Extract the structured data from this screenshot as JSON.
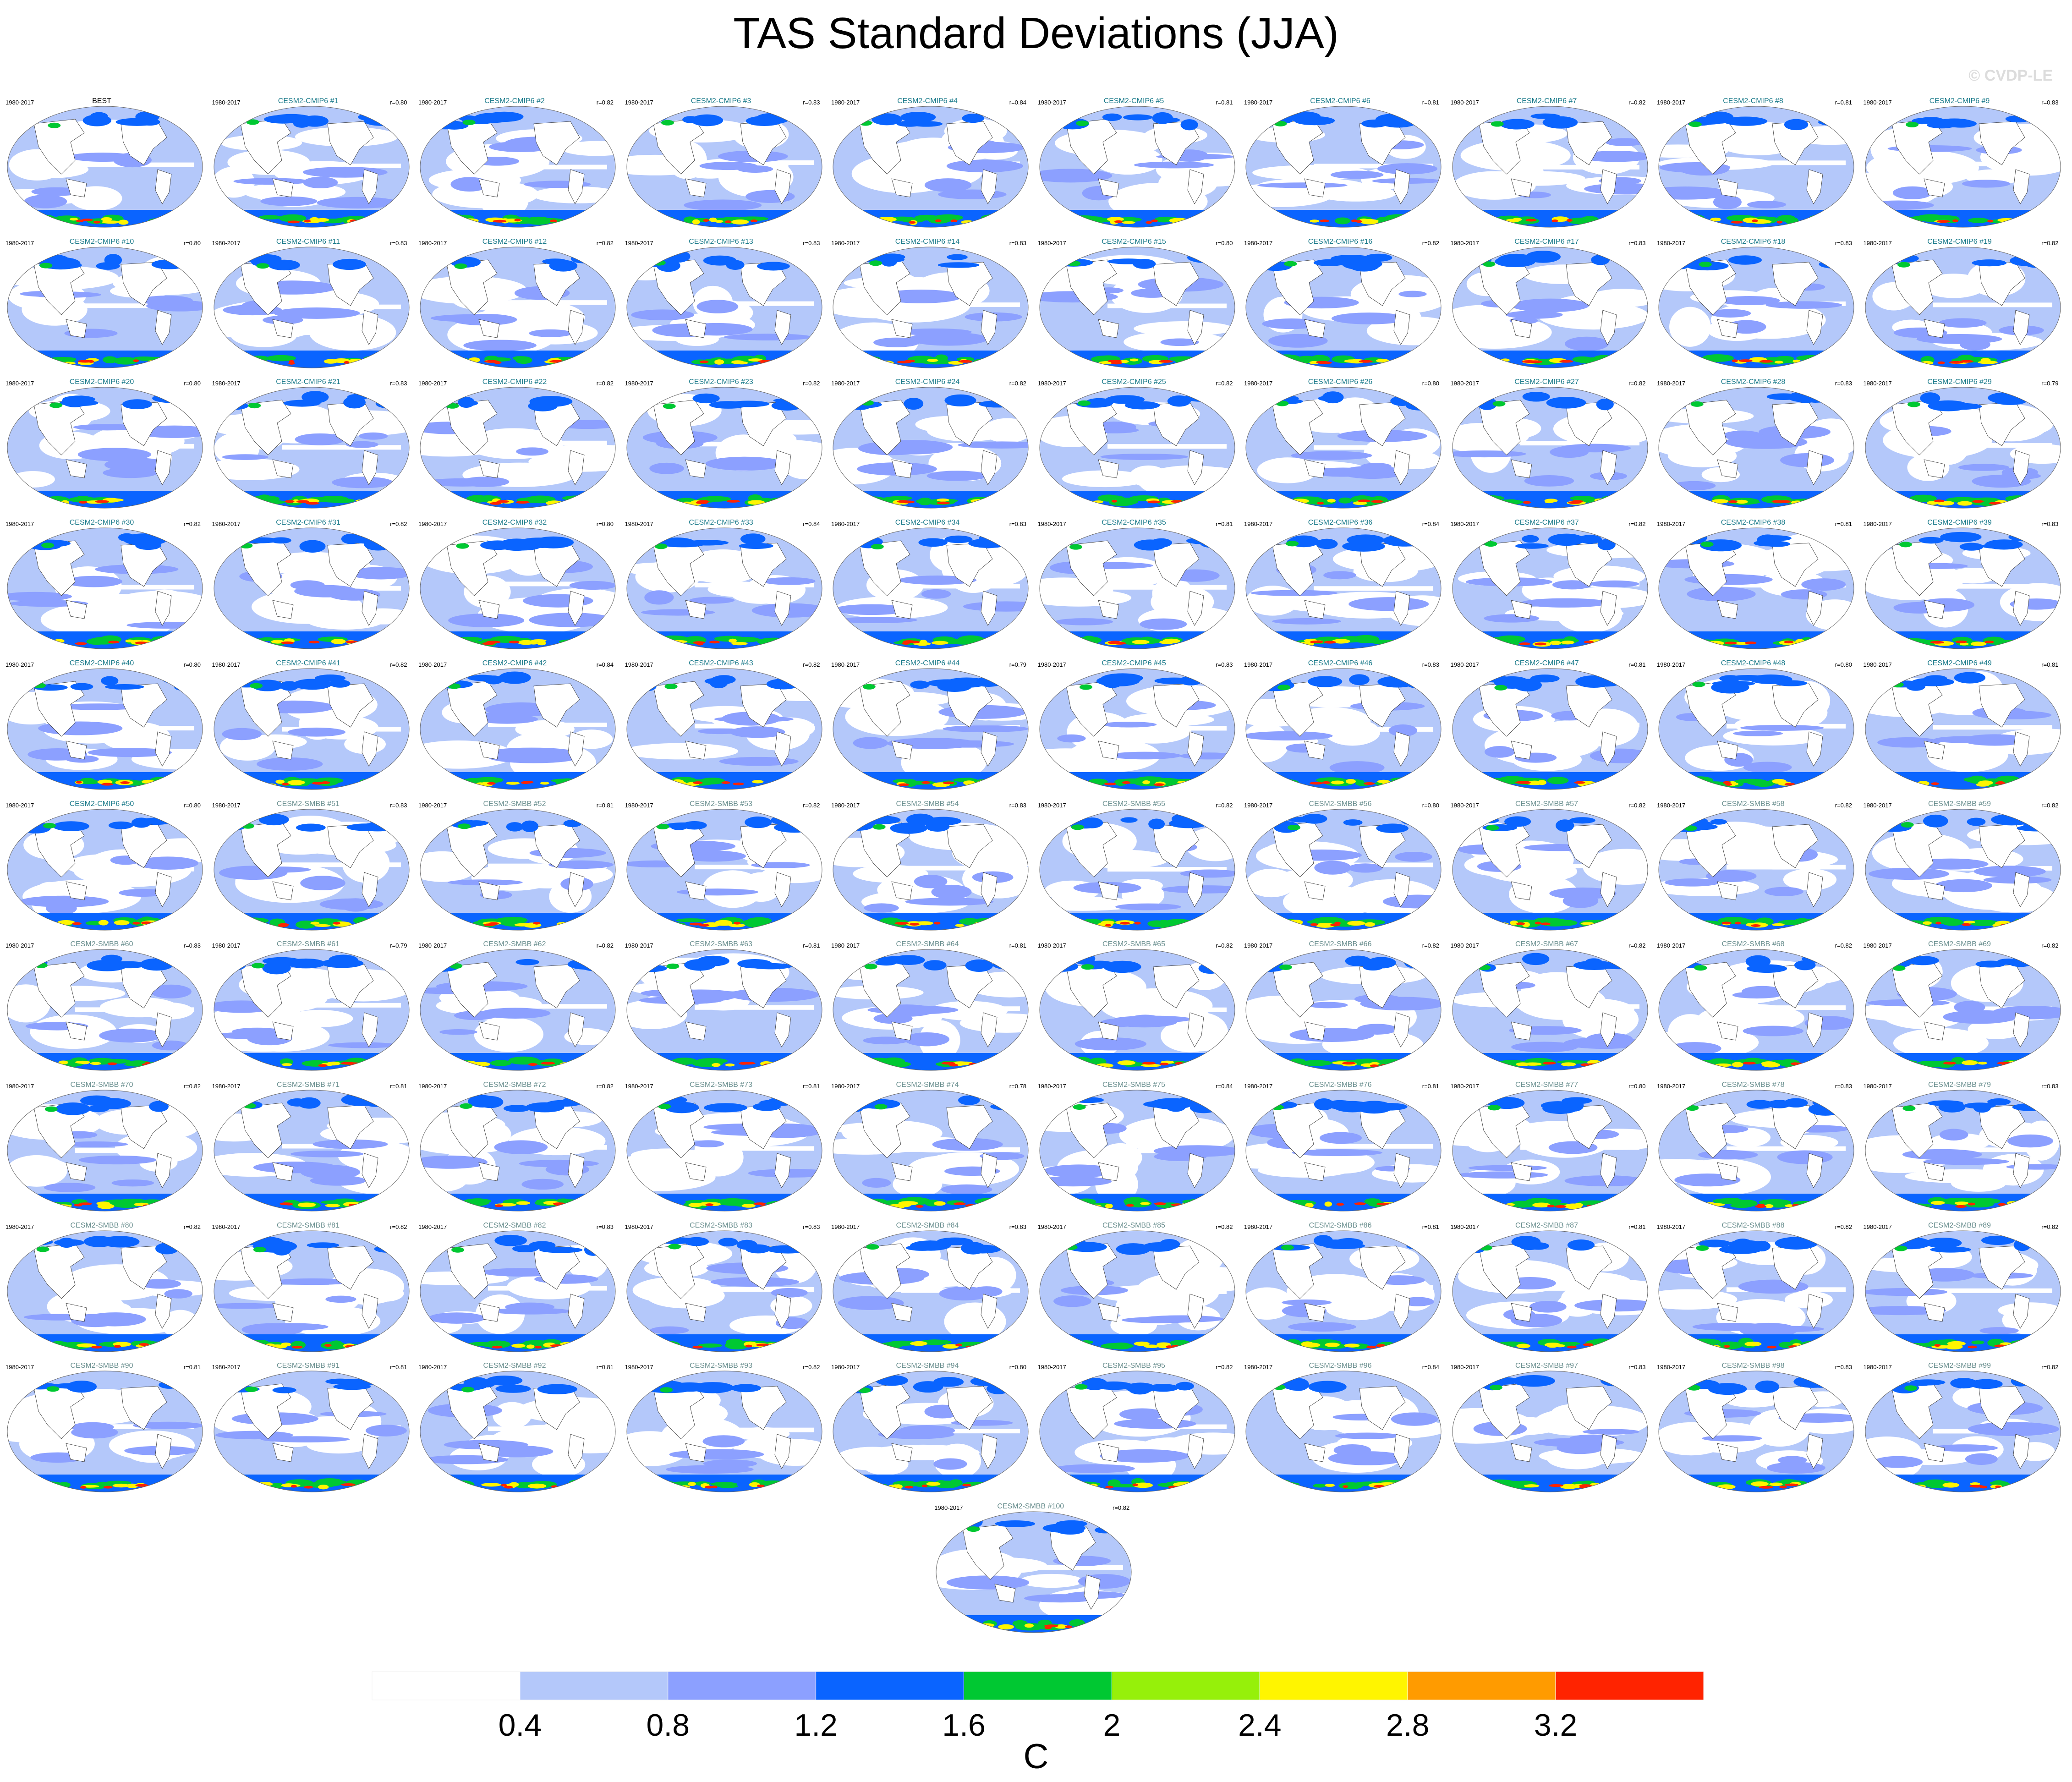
{
  "title": "TAS Standard Deviations (JJA)",
  "watermark": "© CVDP-LE",
  "period": "1980-2017",
  "name_colors": {
    "BEST": "#000000",
    "CESM2-CMIP6": "#1a7a8a",
    "CESM2-SMBB": "#6a8f8f"
  },
  "panels": [
    {
      "name": "BEST",
      "corr": ""
    },
    {
      "name": "CESM2-CMIP6 #1",
      "corr": "r=0.80"
    },
    {
      "name": "CESM2-CMIP6 #2",
      "corr": "r=0.82"
    },
    {
      "name": "CESM2-CMIP6 #3",
      "corr": "r=0.83"
    },
    {
      "name": "CESM2-CMIP6 #4",
      "corr": "r=0.84"
    },
    {
      "name": "CESM2-CMIP6 #5",
      "corr": "r=0.81"
    },
    {
      "name": "CESM2-CMIP6 #6",
      "corr": "r=0.81"
    },
    {
      "name": "CESM2-CMIP6 #7",
      "corr": "r=0.82"
    },
    {
      "name": "CESM2-CMIP6 #8",
      "corr": "r=0.81"
    },
    {
      "name": "CESM2-CMIP6 #9",
      "corr": "r=0.83"
    },
    {
      "name": "CESM2-CMIP6 #10",
      "corr": "r=0.80"
    },
    {
      "name": "CESM2-CMIP6 #11",
      "corr": "r=0.83"
    },
    {
      "name": "CESM2-CMIP6 #12",
      "corr": "r=0.82"
    },
    {
      "name": "CESM2-CMIP6 #13",
      "corr": "r=0.83"
    },
    {
      "name": "CESM2-CMIP6 #14",
      "corr": "r=0.83"
    },
    {
      "name": "CESM2-CMIP6 #15",
      "corr": "r=0.80"
    },
    {
      "name": "CESM2-CMIP6 #16",
      "corr": "r=0.82"
    },
    {
      "name": "CESM2-CMIP6 #17",
      "corr": "r=0.83"
    },
    {
      "name": "CESM2-CMIP6 #18",
      "corr": "r=0.83"
    },
    {
      "name": "CESM2-CMIP6 #19",
      "corr": "r=0.82"
    },
    {
      "name": "CESM2-CMIP6 #20",
      "corr": "r=0.80"
    },
    {
      "name": "CESM2-CMIP6 #21",
      "corr": "r=0.83"
    },
    {
      "name": "CESM2-CMIP6 #22",
      "corr": "r=0.82"
    },
    {
      "name": "CESM2-CMIP6 #23",
      "corr": "r=0.82"
    },
    {
      "name": "CESM2-CMIP6 #24",
      "corr": "r=0.82"
    },
    {
      "name": "CESM2-CMIP6 #25",
      "corr": "r=0.82"
    },
    {
      "name": "CESM2-CMIP6 #26",
      "corr": "r=0.80"
    },
    {
      "name": "CESM2-CMIP6 #27",
      "corr": "r=0.82"
    },
    {
      "name": "CESM2-CMIP6 #28",
      "corr": "r=0.83"
    },
    {
      "name": "CESM2-CMIP6 #29",
      "corr": "r=0.79"
    },
    {
      "name": "CESM2-CMIP6 #30",
      "corr": "r=0.82"
    },
    {
      "name": "CESM2-CMIP6 #31",
      "corr": "r=0.82"
    },
    {
      "name": "CESM2-CMIP6 #32",
      "corr": "r=0.80"
    },
    {
      "name": "CESM2-CMIP6 #33",
      "corr": "r=0.84"
    },
    {
      "name": "CESM2-CMIP6 #34",
      "corr": "r=0.83"
    },
    {
      "name": "CESM2-CMIP6 #35",
      "corr": "r=0.81"
    },
    {
      "name": "CESM2-CMIP6 #36",
      "corr": "r=0.84"
    },
    {
      "name": "CESM2-CMIP6 #37",
      "corr": "r=0.82"
    },
    {
      "name": "CESM2-CMIP6 #38",
      "corr": "r=0.81"
    },
    {
      "name": "CESM2-CMIP6 #39",
      "corr": "r=0.83"
    },
    {
      "name": "CESM2-CMIP6 #40",
      "corr": "r=0.80"
    },
    {
      "name": "CESM2-CMIP6 #41",
      "corr": "r=0.82"
    },
    {
      "name": "CESM2-CMIP6 #42",
      "corr": "r=0.84"
    },
    {
      "name": "CESM2-CMIP6 #43",
      "corr": "r=0.82"
    },
    {
      "name": "CESM2-CMIP6 #44",
      "corr": "r=0.79"
    },
    {
      "name": "CESM2-CMIP6 #45",
      "corr": "r=0.83"
    },
    {
      "name": "CESM2-CMIP6 #46",
      "corr": "r=0.83"
    },
    {
      "name": "CESM2-CMIP6 #47",
      "corr": "r=0.81"
    },
    {
      "name": "CESM2-CMIP6 #48",
      "corr": "r=0.80"
    },
    {
      "name": "CESM2-CMIP6 #49",
      "corr": "r=0.81"
    },
    {
      "name": "CESM2-CMIP6 #50",
      "corr": "r=0.80"
    },
    {
      "name": "CESM2-SMBB #51",
      "corr": "r=0.83"
    },
    {
      "name": "CESM2-SMBB #52",
      "corr": "r=0.81"
    },
    {
      "name": "CESM2-SMBB #53",
      "corr": "r=0.82"
    },
    {
      "name": "CESM2-SMBB #54",
      "corr": "r=0.83"
    },
    {
      "name": "CESM2-SMBB #55",
      "corr": "r=0.82"
    },
    {
      "name": "CESM2-SMBB #56",
      "corr": "r=0.80"
    },
    {
      "name": "CESM2-SMBB #57",
      "corr": "r=0.82"
    },
    {
      "name": "CESM2-SMBB #58",
      "corr": "r=0.82"
    },
    {
      "name": "CESM2-SMBB #59",
      "corr": "r=0.82"
    },
    {
      "name": "CESM2-SMBB #60",
      "corr": "r=0.83"
    },
    {
      "name": "CESM2-SMBB #61",
      "corr": "r=0.79"
    },
    {
      "name": "CESM2-SMBB #62",
      "corr": "r=0.82"
    },
    {
      "name": "CESM2-SMBB #63",
      "corr": "r=0.81"
    },
    {
      "name": "CESM2-SMBB #64",
      "corr": "r=0.81"
    },
    {
      "name": "CESM2-SMBB #65",
      "corr": "r=0.82"
    },
    {
      "name": "CESM2-SMBB #66",
      "corr": "r=0.82"
    },
    {
      "name": "CESM2-SMBB #67",
      "corr": "r=0.82"
    },
    {
      "name": "CESM2-SMBB #68",
      "corr": "r=0.82"
    },
    {
      "name": "CESM2-SMBB #69",
      "corr": "r=0.82"
    },
    {
      "name": "CESM2-SMBB #70",
      "corr": "r=0.82"
    },
    {
      "name": "CESM2-SMBB #71",
      "corr": "r=0.81"
    },
    {
      "name": "CESM2-SMBB #72",
      "corr": "r=0.82"
    },
    {
      "name": "CESM2-SMBB #73",
      "corr": "r=0.81"
    },
    {
      "name": "CESM2-SMBB #74",
      "corr": "r=0.78"
    },
    {
      "name": "CESM2-SMBB #75",
      "corr": "r=0.84"
    },
    {
      "name": "CESM2-SMBB #76",
      "corr": "r=0.81"
    },
    {
      "name": "CESM2-SMBB #77",
      "corr": "r=0.80"
    },
    {
      "name": "CESM2-SMBB #78",
      "corr": "r=0.83"
    },
    {
      "name": "CESM2-SMBB #79",
      "corr": "r=0.83"
    },
    {
      "name": "CESM2-SMBB #80",
      "corr": "r=0.82"
    },
    {
      "name": "CESM2-SMBB #81",
      "corr": "r=0.82"
    },
    {
      "name": "CESM2-SMBB #82",
      "corr": "r=0.83"
    },
    {
      "name": "CESM2-SMBB #83",
      "corr": "r=0.83"
    },
    {
      "name": "CESM2-SMBB #84",
      "corr": "r=0.83"
    },
    {
      "name": "CESM2-SMBB #85",
      "corr": "r=0.82"
    },
    {
      "name": "CESM2-SMBB #86",
      "corr": "r=0.81"
    },
    {
      "name": "CESM2-SMBB #87",
      "corr": "r=0.81"
    },
    {
      "name": "CESM2-SMBB #88",
      "corr": "r=0.82"
    },
    {
      "name": "CESM2-SMBB #89",
      "corr": "r=0.82"
    },
    {
      "name": "CESM2-SMBB #90",
      "corr": "r=0.81"
    },
    {
      "name": "CESM2-SMBB #91",
      "corr": "r=0.81"
    },
    {
      "name": "CESM2-SMBB #92",
      "corr": "r=0.81"
    },
    {
      "name": "CESM2-SMBB #93",
      "corr": "r=0.82"
    },
    {
      "name": "CESM2-SMBB #94",
      "corr": "r=0.80"
    },
    {
      "name": "CESM2-SMBB #95",
      "corr": "r=0.82"
    },
    {
      "name": "CESM2-SMBB #96",
      "corr": "r=0.84"
    },
    {
      "name": "CESM2-SMBB #97",
      "corr": "r=0.83"
    },
    {
      "name": "CESM2-SMBB #98",
      "corr": "r=0.83"
    },
    {
      "name": "CESM2-SMBB #99",
      "corr": "r=0.82"
    },
    {
      "name": "CESM2-SMBB #100",
      "corr": "r=0.82"
    }
  ],
  "chart_data": {
    "type": "heatmap",
    "title": "TAS Standard Deviations (JJA)",
    "layout": "101 map panels in 10 columns; panel 101 centered in final row",
    "colorbar": {
      "levels": [
        0.4,
        0.8,
        1.2,
        1.6,
        2,
        2.4,
        2.8,
        3.2
      ],
      "tick_labels": [
        "0.4",
        "0.8",
        "1.2",
        "1.6",
        "2",
        "2.4",
        "2.8",
        "3.2"
      ],
      "colors": [
        "#ffffff",
        "#b4c8fa",
        "#8ca0ff",
        "#0a64ff",
        "#00c832",
        "#96f00a",
        "#fff500",
        "#ff9b00",
        "#ff2300"
      ],
      "unit": "C"
    },
    "map_palette": {
      "land": "#ffffff",
      "low": "#b4c8fa",
      "mid": "#8ca0ff",
      "high": "#0a64ff",
      "green": "#00c832",
      "lime": "#96f00a",
      "yellow": "#fff500",
      "orange": "#ff9b00",
      "red": "#ff2300",
      "coast": "#333333"
    }
  }
}
